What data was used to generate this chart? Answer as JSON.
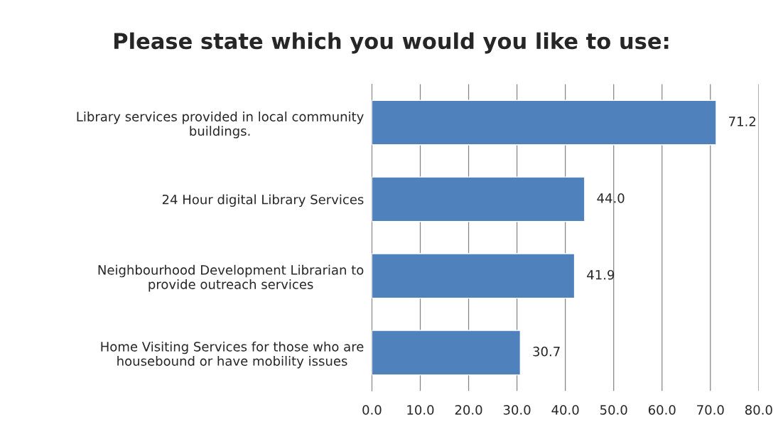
{
  "chart_data": {
    "type": "bar",
    "orientation": "horizontal",
    "title": "Please state which you would you like to use:",
    "categories": [
      "Library services provided in local community\nbuildings.",
      "24 Hour digital Library Services",
      "Neighbourhood Development Librarian to\nprovide outreach services",
      "Home Visiting Services for those who are\nhousebound or have mobility issues"
    ],
    "values": [
      71.2,
      44.0,
      41.9,
      30.7
    ],
    "color": "#4f81bd",
    "value_labels": [
      "71.2",
      "44.0",
      "41.9",
      "30.7"
    ],
    "xlim": [
      0,
      80
    ],
    "xticks": [
      {
        "value": 0,
        "label": "0.0"
      },
      {
        "value": 10,
        "label": "10.0"
      },
      {
        "value": 20,
        "label": "20.0"
      },
      {
        "value": 30,
        "label": "30.0"
      },
      {
        "value": 40,
        "label": "40.0"
      },
      {
        "value": 50,
        "label": "50.0"
      },
      {
        "value": 60,
        "label": "60.0"
      },
      {
        "value": 70,
        "label": "70.0"
      },
      {
        "value": 80,
        "label": "80.0"
      }
    ],
    "grid": "x",
    "legend": false
  }
}
